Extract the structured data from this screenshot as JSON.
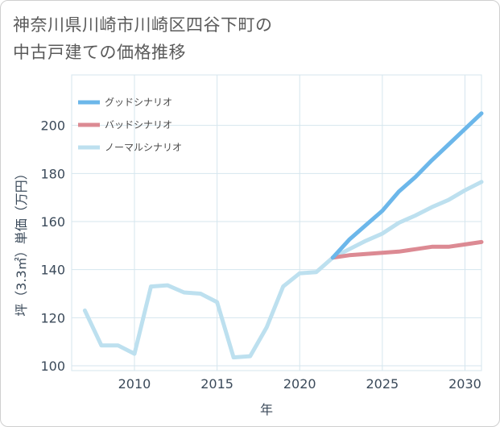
{
  "title": {
    "line1": "神奈川県川崎市川崎区四谷下町の",
    "line2": "中古戸建ての価格推移"
  },
  "chart_data": {
    "type": "line",
    "title": "神奈川県川崎市川崎区四谷下町の中古戸建ての価格推移",
    "xlabel": "年",
    "ylabel": "坪（3.3㎡）単価（万円）",
    "xlim": [
      2006.2,
      2031
    ],
    "ylim": [
      98,
      221
    ],
    "xticks": [
      2010,
      2015,
      2020,
      2025,
      2030
    ],
    "yticks": [
      100,
      120,
      140,
      160,
      180,
      200
    ],
    "grid": true,
    "legend_position": "top-left",
    "colors": {
      "good": "#6cb7ea",
      "bad": "#dc8a93",
      "normal": "#bde0ef",
      "grid": "#d5e6ee",
      "text": "#3b4a5a"
    },
    "series": [
      {
        "key": "good",
        "name": "グッドシナリオ",
        "x": [
          2022,
          2023,
          2024,
          2025,
          2026,
          2027,
          2028,
          2029,
          2030,
          2031
        ],
        "values": [
          145,
          152.5,
          158.5,
          164.5,
          172.5,
          178.5,
          185.5,
          192,
          198.5,
          205
        ]
      },
      {
        "key": "bad",
        "name": "バッドシナリオ",
        "x": [
          2022,
          2023,
          2024,
          2025,
          2026,
          2027,
          2028,
          2029,
          2030,
          2031
        ],
        "values": [
          145,
          146,
          146.5,
          147,
          147.5,
          148.5,
          149.5,
          149.5,
          150.5,
          151.5
        ]
      },
      {
        "key": "normal",
        "name": "ノーマルシナリオ",
        "x": [
          2007,
          2008,
          2009,
          2010,
          2011,
          2012,
          2013,
          2014,
          2015,
          2016,
          2017,
          2018,
          2019,
          2020,
          2021,
          2022,
          2023,
          2024,
          2025,
          2026,
          2027,
          2028,
          2029,
          2030,
          2031
        ],
        "values": [
          123,
          108.5,
          108.5,
          105,
          133,
          133.5,
          130.5,
          130,
          126.5,
          103.5,
          104,
          116,
          133,
          138.5,
          139,
          145,
          148.5,
          152,
          155,
          159.5,
          162.5,
          166,
          169,
          173,
          176.5
        ]
      }
    ]
  }
}
